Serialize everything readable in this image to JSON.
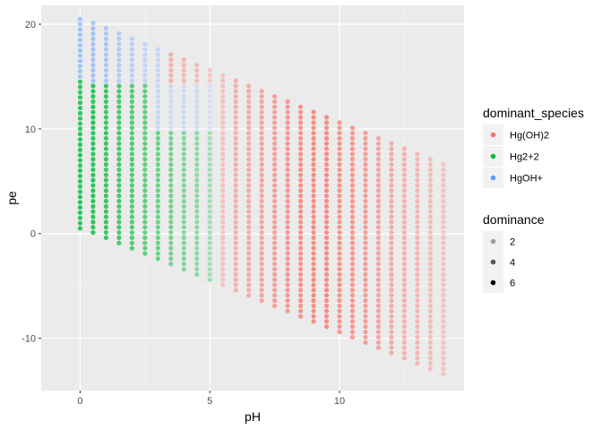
{
  "chart_data": {
    "type": "scatter",
    "xlabel": "pH",
    "ylabel": "pe",
    "xlim": [
      -1.5,
      14.8
    ],
    "ylim": [
      -15,
      21.8
    ],
    "x_ticks": [
      0,
      5,
      10
    ],
    "x_tick_labels": [
      "0",
      "5",
      "10"
    ],
    "y_ticks": [
      -10,
      0,
      10,
      20
    ],
    "y_tick_labels": [
      "-10",
      "0",
      "10",
      "20"
    ],
    "grid": true,
    "legend_position": "right",
    "legends": {
      "color": {
        "title": "dominant_species",
        "entries": [
          {
            "label": "Hg(OH)2",
            "color": "#F8766D"
          },
          {
            "label": "Hg2+2",
            "color": "#00BA38"
          },
          {
            "label": "HgOH+",
            "color": "#619CFF"
          }
        ]
      },
      "alpha": {
        "title": "dominance",
        "entries": [
          {
            "label": "2",
            "alpha": 0.35
          },
          {
            "label": "4",
            "alpha": 0.65
          },
          {
            "label": "6",
            "alpha": 1.0
          }
        ]
      }
    },
    "data_description": {
      "pH_values": {
        "start": 0,
        "end": 14,
        "step": 0.5
      },
      "pe_step": 0.5,
      "pe_top": [
        20.5,
        20.1,
        19.6,
        19.1,
        18.6,
        18.1,
        17.6,
        17.1,
        16.6,
        16.1,
        15.6,
        15.1,
        14.6,
        14.1,
        13.6,
        13.1,
        12.6,
        12.1,
        11.6,
        11.1,
        10.6,
        10.1,
        9.6,
        9.1,
        8.6,
        8.1,
        7.6,
        7.1,
        6.6
      ],
      "pe_bottom": [
        0.5,
        0,
        -0.5,
        -1.0,
        -1.5,
        -2.0,
        -2.5,
        -3.0,
        -3.5,
        -4.0,
        -4.5,
        -5.0,
        -5.5,
        -6.0,
        -6.5,
        -7.0,
        -7.5,
        -8.0,
        -8.5,
        -9.0,
        -9.5,
        -10.0,
        -10.5,
        -11.0,
        -11.5,
        -12.0,
        -12.5,
        -13.0,
        -13.5
      ],
      "species_boundaries": {
        "HgOH+_above_pe": [
          14.5,
          14.5,
          14.5,
          14.5,
          14.5,
          14.5,
          14.5,
          14.5,
          14.5,
          14.5,
          14.5
        ],
        "Hg2+2_max_pH": 5.0
      },
      "dominance_by_pH": [
        6,
        6,
        5.5,
        5,
        4.5,
        4,
        3.5,
        3,
        2.5,
        2,
        1.5,
        1.5,
        3,
        3.5,
        4,
        4.5,
        5,
        5.5,
        6,
        6,
        5.5,
        5,
        4.5,
        4,
        3.5,
        3,
        2.5,
        2,
        1.5
      ]
    }
  }
}
